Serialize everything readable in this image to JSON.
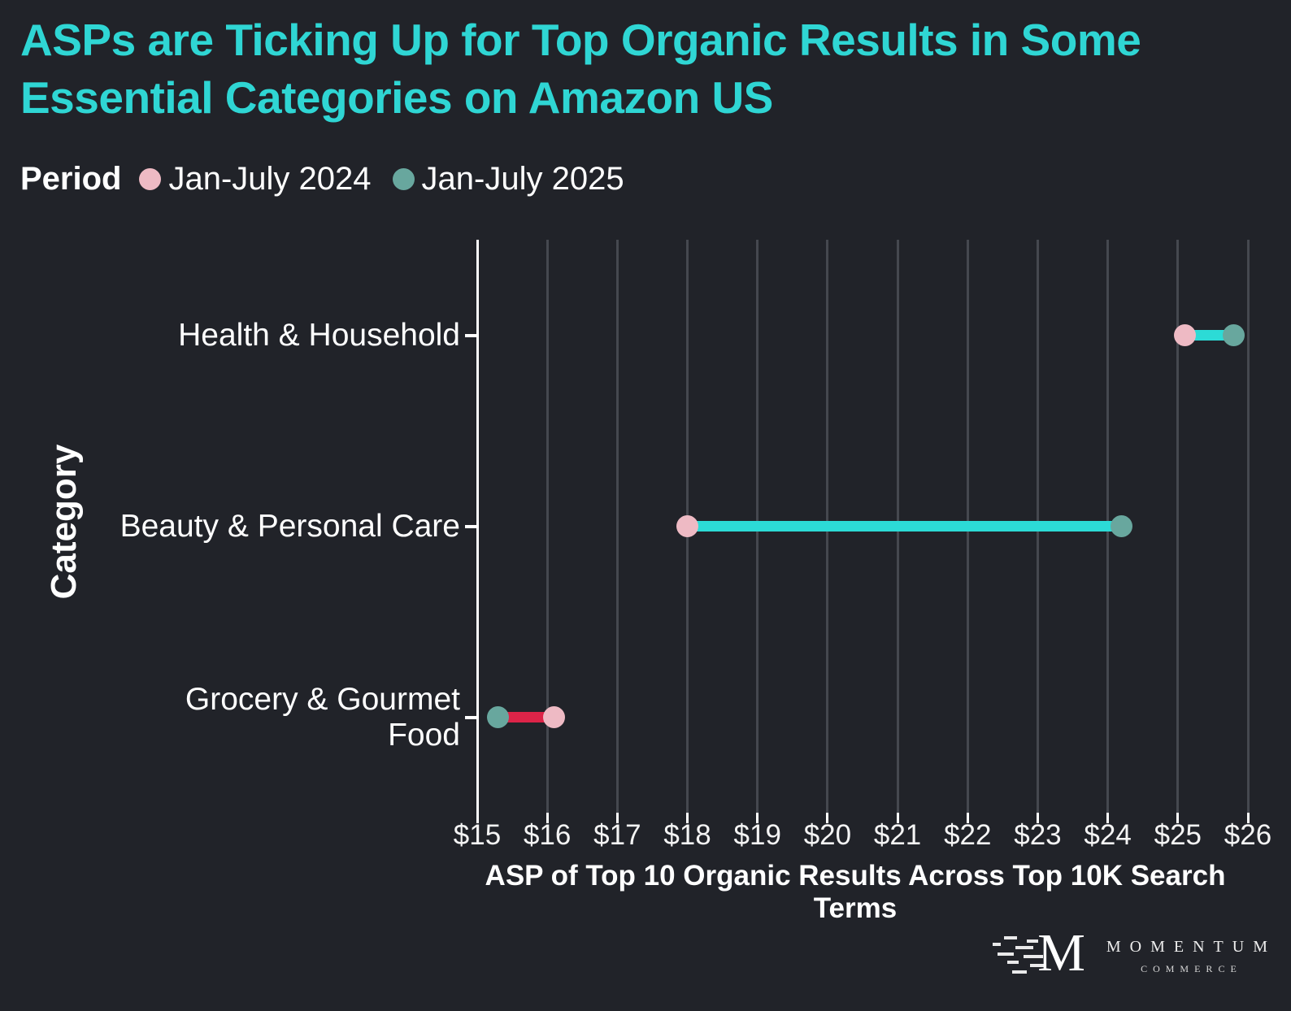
{
  "title": {
    "text": "ASPs are Ticking Up for Top Organic Results in Some Essential Categories on Amazon US",
    "color": "#2FD6D4"
  },
  "legend": {
    "title": "Period",
    "items": [
      {
        "label": "Jan-July 2024",
        "color": "#EEBAC4"
      },
      {
        "label": "Jan-July 2025",
        "color": "#68A79E"
      }
    ]
  },
  "chart_data": {
    "type": "dumbbell",
    "orientation": "horizontal",
    "title": "",
    "xlabel": "ASP of Top 10 Organic Results Across Top 10K Search Terms",
    "ylabel": "Category",
    "categories": [
      "Health & Household",
      "Beauty & Personal Care",
      "Grocery & Gourmet Food"
    ],
    "category_display_labels": [
      "Health & Household",
      "Beauty & Personal Care",
      "Grocery & Gourmet\nFood"
    ],
    "series": [
      {
        "name": "Jan-July 2024",
        "color": "#EEBAC4",
        "values": [
          25.1,
          18.0,
          16.1
        ]
      },
      {
        "name": "Jan-July 2025",
        "color": "#68A79E",
        "values": [
          25.8,
          24.2,
          15.3
        ]
      }
    ],
    "connectors": [
      {
        "category": "Health & Household",
        "from": 25.1,
        "to": 25.8,
        "change": "increase",
        "color": "#2CDBD6"
      },
      {
        "category": "Beauty & Personal Care",
        "from": 18.0,
        "to": 24.2,
        "change": "increase",
        "color": "#2CDBD6"
      },
      {
        "category": "Grocery & Gourmet Food",
        "from": 16.1,
        "to": 15.3,
        "change": "decrease",
        "color": "#DC2448"
      }
    ],
    "xlim": [
      15,
      26
    ],
    "x_ticks": [
      {
        "value": 15,
        "label": "$15"
      },
      {
        "value": 16,
        "label": "$16"
      },
      {
        "value": 17,
        "label": "$17"
      },
      {
        "value": 18,
        "label": "$18"
      },
      {
        "value": 19,
        "label": "$19"
      },
      {
        "value": 20,
        "label": "$20"
      },
      {
        "value": 21,
        "label": "$21"
      },
      {
        "value": 22,
        "label": "$22"
      },
      {
        "value": 23,
        "label": "$23"
      },
      {
        "value": 24,
        "label": "$24"
      },
      {
        "value": 25,
        "label": "$25"
      },
      {
        "value": 26,
        "label": "$26"
      }
    ],
    "grid": "vertical",
    "legend_position": "top-left"
  },
  "logo": {
    "monogram": "M",
    "name": "MOMENTUM",
    "subtitle": "COMMERCE"
  },
  "colors": {
    "background": "#212329",
    "gridline": "#45484F",
    "axis": "#FFFFFF",
    "text": "#FFFFFF",
    "title_accent": "#2FD6D4",
    "increase_connector": "#2CDBD6",
    "decrease_connector": "#DC2448",
    "series_2024": "#EEBAC4",
    "series_2025": "#68A79E"
  }
}
